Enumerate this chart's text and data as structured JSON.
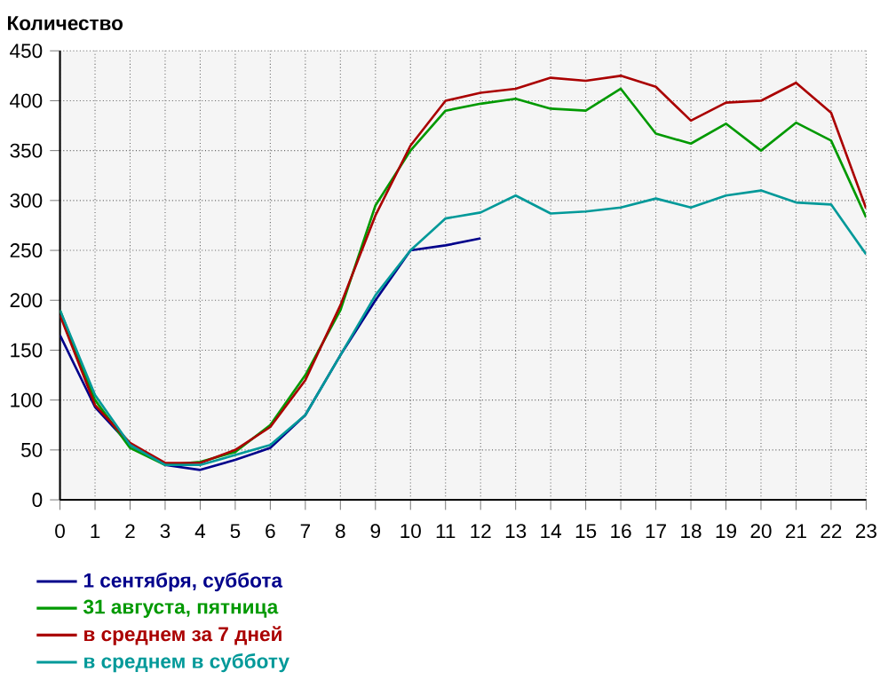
{
  "chart_data": {
    "type": "line",
    "ylabel": "Количество",
    "x": [
      0,
      1,
      2,
      3,
      4,
      5,
      6,
      7,
      8,
      9,
      10,
      11,
      12,
      13,
      14,
      15,
      16,
      17,
      18,
      19,
      20,
      21,
      22,
      23
    ],
    "xlim": [
      0,
      23
    ],
    "xticks": [
      0,
      1,
      2,
      3,
      4,
      5,
      6,
      7,
      8,
      9,
      10,
      11,
      12,
      13,
      14,
      15,
      16,
      17,
      18,
      19,
      20,
      21,
      22,
      23
    ],
    "ylim": [
      0,
      450
    ],
    "yticks": [
      0,
      50,
      100,
      150,
      200,
      250,
      300,
      350,
      400,
      450
    ],
    "grid": true,
    "legend": "bottom left",
    "series": [
      {
        "name": "1 сентября, суббота",
        "color": "#00008b",
        "values": [
          165,
          93,
          55,
          35,
          30,
          40,
          52,
          85,
          145,
          200,
          250,
          255,
          262,
          null,
          null,
          null,
          null,
          null,
          null,
          null,
          null,
          null,
          null,
          null
        ]
      },
      {
        "name": "31 августа, пятница",
        "color": "#009900",
        "values": [
          190,
          100,
          52,
          35,
          38,
          48,
          75,
          125,
          190,
          295,
          350,
          390,
          397,
          402,
          392,
          390,
          412,
          367,
          357,
          377,
          350,
          378,
          360,
          283
        ]
      },
      {
        "name": "в среднем за 7 дней",
        "color": "#aa0000",
        "values": [
          185,
          95,
          57,
          37,
          37,
          50,
          73,
          120,
          195,
          285,
          355,
          400,
          408,
          412,
          423,
          420,
          425,
          414,
          380,
          398,
          400,
          418,
          388,
          292
        ]
      },
      {
        "name": "в среднем в субботу",
        "color": "#009999",
        "values": [
          190,
          105,
          55,
          35,
          35,
          45,
          55,
          85,
          145,
          205,
          250,
          282,
          288,
          305,
          287,
          289,
          293,
          302,
          293,
          305,
          310,
          298,
          296,
          246
        ]
      }
    ]
  }
}
